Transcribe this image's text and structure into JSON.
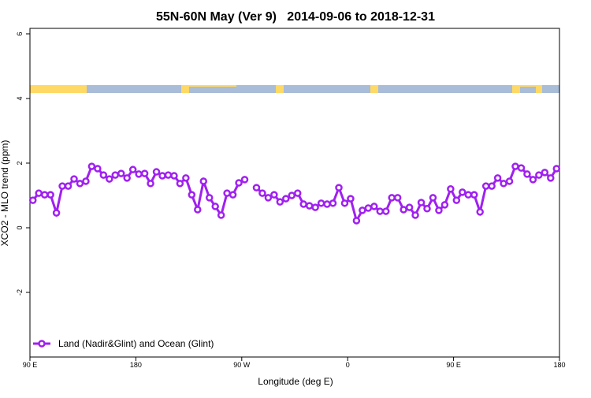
{
  "chart_data": {
    "type": "line",
    "title": "55N-60N May (Ver 9)   2014-09-06 to 2018-12-31",
    "xlabel": "Longitude (deg E)",
    "ylabel": "XCO2 - MLO trend (ppm)",
    "x": [
      92.5,
      97.5,
      102.5,
      107.5,
      112.5,
      117.5,
      122.5,
      127.5,
      132.5,
      137.5,
      142.5,
      147.5,
      152.5,
      157.5,
      162.5,
      167.5,
      172.5,
      177.5,
      182.5,
      187.5,
      192.5,
      197.5,
      202.5,
      207.5,
      212.5,
      217.5,
      222.5,
      227.5,
      232.5,
      237.5,
      242.5,
      247.5,
      252.5,
      257.5,
      262.5,
      267.5,
      272.5,
      277.5,
      282.5,
      287.5,
      292.5,
      297.5,
      302.5,
      307.5,
      312.5,
      317.5,
      322.5,
      327.5,
      332.5,
      337.5,
      342.5,
      347.5,
      352.5,
      357.5,
      362.5,
      367.5,
      372.5,
      377.5,
      382.5,
      387.5,
      392.5,
      397.5,
      402.5,
      407.5,
      412.5,
      417.5,
      422.5,
      427.5,
      432.5,
      437.5,
      442.5,
      447.5,
      452.5,
      457.5,
      462.5,
      467.5,
      472.5,
      477.5,
      482.5,
      487.5,
      492.5,
      497.5,
      502.5,
      507.5,
      512.5,
      517.5,
      522.5,
      527.5,
      532.5,
      537.5
    ],
    "series": [
      {
        "name": "Land (Nadir&Glint) and Ocean (Glint)",
        "color": "#a020f0",
        "values": [
          0.85,
          1.07,
          1.02,
          1.02,
          0.46,
          1.29,
          1.29,
          1.51,
          1.37,
          1.44,
          1.9,
          1.83,
          1.63,
          1.51,
          1.63,
          1.68,
          1.54,
          1.8,
          1.66,
          1.68,
          1.37,
          1.73,
          1.61,
          1.63,
          1.61,
          1.37,
          1.54,
          1.02,
          0.56,
          1.44,
          0.93,
          0.66,
          0.39,
          1.07,
          1.02,
          1.39,
          1.49,
          null,
          1.24,
          1.07,
          0.93,
          1.02,
          0.8,
          0.9,
          1.0,
          1.07,
          0.73,
          0.68,
          0.63,
          0.76,
          0.73,
          0.76,
          1.24,
          0.76,
          0.9,
          0.22,
          0.54,
          0.61,
          0.66,
          0.51,
          0.51,
          0.93,
          0.93,
          0.56,
          0.63,
          0.39,
          0.78,
          0.59,
          0.93,
          0.54,
          0.71,
          1.2,
          0.85,
          1.1,
          1.02,
          1.02,
          0.49,
          1.29,
          1.29,
          1.54,
          1.37,
          1.44,
          1.9,
          1.85,
          1.66,
          1.49,
          1.63,
          1.71,
          1.54,
          1.83
        ]
      }
    ],
    "xlim": [
      90,
      540
    ],
    "xticks": [
      {
        "value": 90,
        "label": "90 E"
      },
      180,
      {
        "value": 270,
        "label": "90 W"
      },
      {
        "value": 360,
        "label": "0"
      },
      {
        "value": 450,
        "label": "90 E"
      },
      {
        "value": 540,
        "label": "180"
      }
    ],
    "ylim": [
      -4,
      6.17
    ],
    "yticks": [
      -2,
      0,
      2,
      4,
      6
    ],
    "legend": "bottom-left"
  }
}
